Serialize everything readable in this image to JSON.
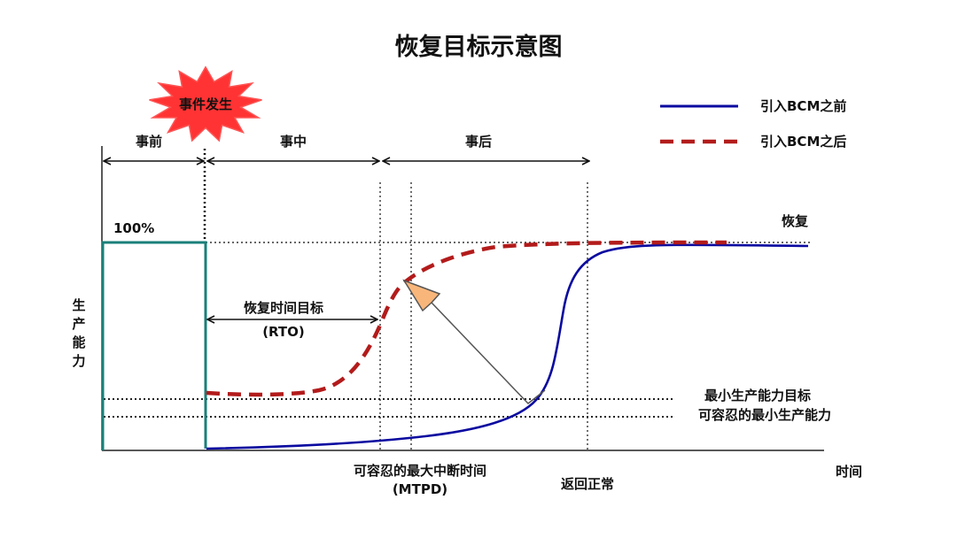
{
  "title": "恢复目标示意图",
  "event": {
    "label": "事件发生",
    "fill": "#ff3333",
    "stroke": "#ff5555"
  },
  "phases": {
    "before": "事前",
    "during": "事中",
    "after": "事后"
  },
  "legend": {
    "before_bcm": {
      "label": "引入BCM之前",
      "color": "#0a0aa0"
    },
    "after_bcm": {
      "label": "引入BCM之后",
      "color": "#b31b1b"
    }
  },
  "y_axis_label": [
    "生",
    "产",
    "能",
    "力"
  ],
  "x_axis_label": "时间",
  "labels": {
    "hundred_percent": "100%",
    "recovery": "恢复",
    "rto": [
      "恢复时间目标",
      "(RTO)"
    ],
    "min_capacity_target": "最小生产能力目标",
    "tolerable_min_capacity": "可容忍的最小生产能力",
    "mtpd": [
      "可容忍的最大中断时间",
      "(MTPD)"
    ],
    "return_normal": "返回正常"
  },
  "colors": {
    "capacity_step": "#1a7f79",
    "arrow_fill": "#f9b67a",
    "arrow_stroke": "#555555"
  }
}
